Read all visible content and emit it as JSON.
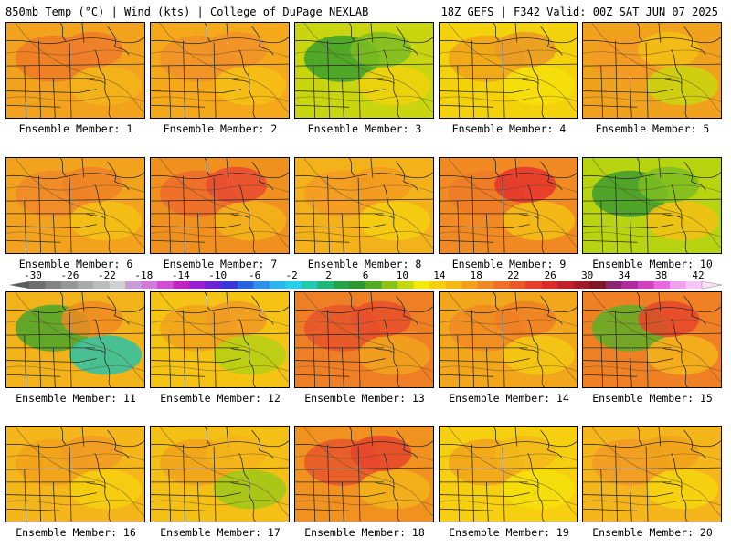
{
  "header": {
    "left": "850mb Temp (°C) | Wind (kts) | College of DuPage NEXLAB",
    "right": "18Z GEFS | F342 Valid: 00Z SAT JUN 07 2025"
  },
  "panel_label_prefix": "Ensemble Member:",
  "panels": [
    {
      "label": "Ensemble Member: 1",
      "base": "#f2a21c",
      "blobs": [
        {
          "c": "#ef7a26"
        },
        {
          "c": "#f3b41a"
        },
        {
          "c": "#ee7c2a"
        }
      ]
    },
    {
      "label": "Ensemble Member: 2",
      "base": "#f4a81a",
      "blobs": [
        {
          "c": "#f1922a"
        },
        {
          "c": "#f5c115"
        },
        {
          "c": "#f1922a"
        }
      ]
    },
    {
      "label": "Ensemble Member: 3",
      "base": "#c9d60f",
      "blobs": [
        {
          "c": "#3aa02c"
        },
        {
          "c": "#f0d20c"
        },
        {
          "c": "#7cbd22"
        }
      ]
    },
    {
      "label": "Ensemble Member: 4",
      "base": "#f3d20c",
      "blobs": [
        {
          "c": "#f1a21a"
        },
        {
          "c": "#f6e10b"
        },
        {
          "c": "#e99a28"
        }
      ]
    },
    {
      "label": "Ensemble Member: 5",
      "base": "#f1a21c",
      "blobs": [
        {
          "c": "#f39a24"
        },
        {
          "c": "#c9d60f"
        },
        {
          "c": "#f3c014"
        }
      ]
    },
    {
      "label": "Ensemble Member: 6",
      "base": "#f2a21c",
      "blobs": [
        {
          "c": "#f08a2a"
        },
        {
          "c": "#f3c214"
        },
        {
          "c": "#ee8227"
        }
      ]
    },
    {
      "label": "Ensemble Member: 7",
      "base": "#f0911f",
      "blobs": [
        {
          "c": "#ef6a2b"
        },
        {
          "c": "#f3b41a"
        },
        {
          "c": "#e74a31"
        }
      ]
    },
    {
      "label": "Ensemble Member: 8",
      "base": "#f3b21a",
      "blobs": [
        {
          "c": "#f39a24"
        },
        {
          "c": "#f5cf12"
        },
        {
          "c": "#f29a20"
        }
      ]
    },
    {
      "label": "Ensemble Member: 9",
      "base": "#f18a22",
      "blobs": [
        {
          "c": "#ef7a26"
        },
        {
          "c": "#f5c014"
        },
        {
          "c": "#e5322d"
        }
      ]
    },
    {
      "label": "Ensemble Member: 10",
      "base": "#b8d411",
      "blobs": [
        {
          "c": "#3c9b2e"
        },
        {
          "c": "#f3c014"
        },
        {
          "c": "#7cbd22"
        }
      ]
    },
    {
      "label": "Ensemble Member: 11",
      "base": "#f1b21a",
      "blobs": [
        {
          "c": "#4aa42c"
        },
        {
          "c": "#2bc2a8"
        },
        {
          "c": "#f08a22"
        }
      ]
    },
    {
      "label": "Ensemble Member: 12",
      "base": "#f5c314",
      "blobs": [
        {
          "c": "#f1a21c"
        },
        {
          "c": "#b4d013"
        },
        {
          "c": "#f19a24"
        }
      ]
    },
    {
      "label": "Ensemble Member: 13",
      "base": "#ef7f25",
      "blobs": [
        {
          "c": "#e8542b"
        },
        {
          "c": "#f1a21c"
        },
        {
          "c": "#e84f2c"
        }
      ]
    },
    {
      "label": "Ensemble Member: 14",
      "base": "#f2a61c",
      "blobs": [
        {
          "c": "#f08a22"
        },
        {
          "c": "#f5c913"
        },
        {
          "c": "#ef7f25"
        }
      ]
    },
    {
      "label": "Ensemble Member: 15",
      "base": "#ef8024",
      "blobs": [
        {
          "c": "#5fae28"
        },
        {
          "c": "#f3b41a"
        },
        {
          "c": "#e6452c"
        }
      ]
    },
    {
      "label": "Ensemble Member: 16",
      "base": "#f4b61a",
      "blobs": [
        {
          "c": "#f1a21c"
        },
        {
          "c": "#f6d00f"
        },
        {
          "c": "#f19a24"
        }
      ]
    },
    {
      "label": "Ensemble Member: 17",
      "base": "#f4c016",
      "blobs": [
        {
          "c": "#f1a21c"
        },
        {
          "c": "#9cc81a"
        },
        {
          "c": "#f3b41a"
        }
      ]
    },
    {
      "label": "Ensemble Member: 18",
      "base": "#f19220",
      "blobs": [
        {
          "c": "#e8562b"
        },
        {
          "c": "#f3b41a"
        },
        {
          "c": "#e6442d"
        }
      ]
    },
    {
      "label": "Ensemble Member: 19",
      "base": "#f6d010",
      "blobs": [
        {
          "c": "#f1a21c"
        },
        {
          "c": "#f6e00c"
        },
        {
          "c": "#f3b81a"
        }
      ]
    },
    {
      "label": "Ensemble Member: 20",
      "base": "#f4b61a",
      "blobs": [
        {
          "c": "#f19a24"
        },
        {
          "c": "#f6d60f"
        },
        {
          "c": "#f1a21c"
        }
      ]
    }
  ],
  "colorbar": {
    "labels": [
      "-30",
      "-26",
      "-22",
      "-18",
      "-14",
      "-10",
      "-6",
      "-2",
      "2",
      "6",
      "10",
      "14",
      "18",
      "22",
      "26",
      "30",
      "34",
      "38",
      "42"
    ],
    "colors": [
      "#6e6e6e",
      "#838383",
      "#979797",
      "#aaaaaa",
      "#bdbdbd",
      "#d0d0d0",
      "#c89cd6",
      "#d27ad8",
      "#d04cd0",
      "#c021c0",
      "#9a1ed2",
      "#6c24d2",
      "#3838d8",
      "#2a62e0",
      "#2d8fe8",
      "#2bb6ee",
      "#27d0e6",
      "#22c9b0",
      "#21b67a",
      "#23a34a",
      "#2e9630",
      "#55aa24",
      "#8cc21a",
      "#c5d70f",
      "#f4ea0a",
      "#f6d00f",
      "#f6b818",
      "#f29f1c",
      "#ef8a22",
      "#ec7126",
      "#e9582a",
      "#e5402c",
      "#dc2a2c",
      "#c2202a",
      "#a01a28",
      "#7e1626",
      "#8a2570",
      "#b02a9a",
      "#d040c0",
      "#e868e0",
      "#f3a0ee",
      "#f8c6f6"
    ]
  }
}
